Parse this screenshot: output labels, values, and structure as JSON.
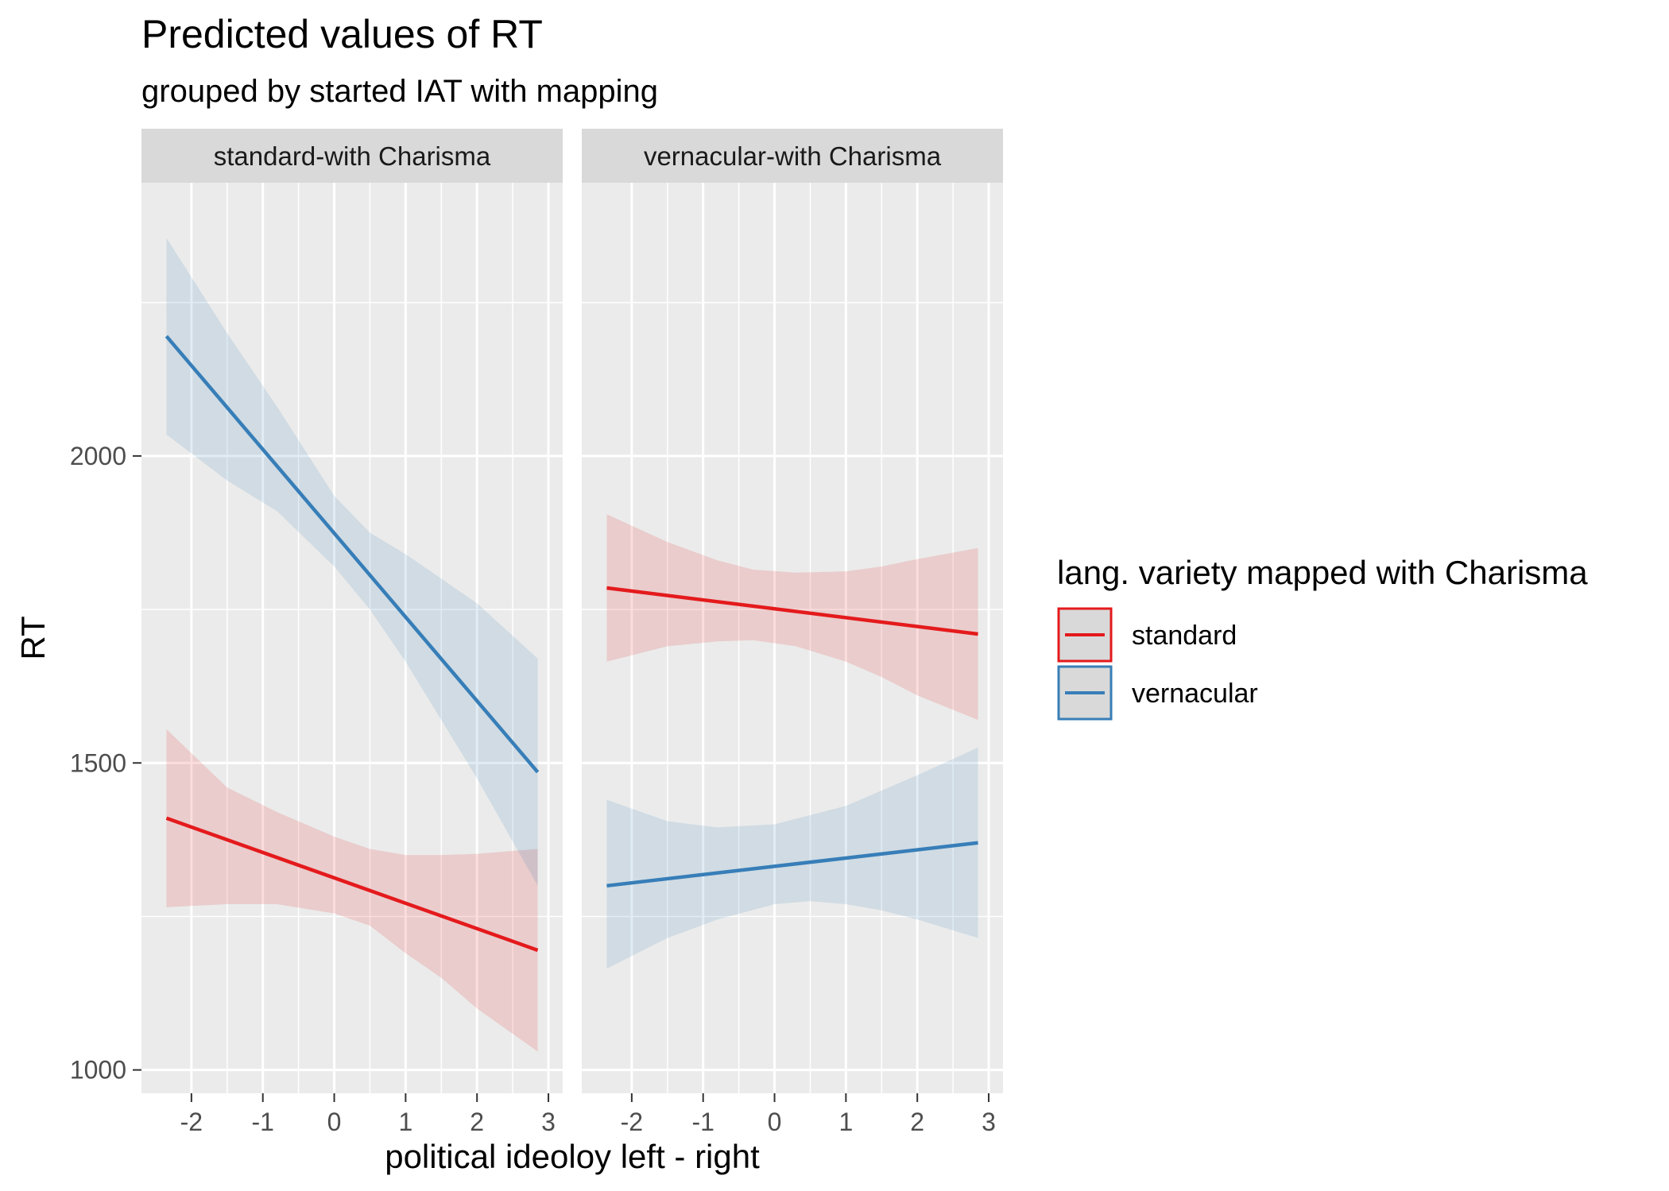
{
  "chart_data": {
    "type": "line",
    "title": "Predicted values of RT",
    "subtitle": "grouped by started IAT with mapping",
    "xlabel": "political ideoloy left - right",
    "ylabel": "RT",
    "xlim": [
      -2.7,
      3.2
    ],
    "ylim": [
      962,
      2445
    ],
    "x_ticks": [
      -2,
      -1,
      0,
      1,
      2,
      3
    ],
    "x_tick_labels": [
      "-2",
      "-1",
      "0",
      "1",
      "2",
      "3"
    ],
    "y_ticks": [
      1000,
      1500,
      2000
    ],
    "y_tick_labels": [
      "1000",
      "1500",
      "2000"
    ],
    "grid": true,
    "legend": {
      "title": "lang. variety mapped with Charisma",
      "position": "right",
      "entries": [
        "standard",
        "vernacular"
      ]
    },
    "colors": {
      "standard": "#e41a1c",
      "vernacular": "#377eb8"
    },
    "panels": [
      {
        "label": "standard-with Charisma",
        "series": [
          {
            "name": "standard",
            "x": [
              -2.35,
              2.85
            ],
            "y": [
              1410,
              1195
            ],
            "ci_x": [
              -2.35,
              -1.5,
              -0.8,
              0,
              0.5,
              1,
              1.5,
              2,
              2.85
            ],
            "ci_lower": [
              1265,
              1270,
              1270,
              1255,
              1235,
              1190,
              1150,
              1100,
              1030
            ],
            "ci_upper": [
              1555,
              1460,
              1420,
              1380,
              1360,
              1350,
              1350,
              1352,
              1360
            ]
          },
          {
            "name": "vernacular",
            "x": [
              -2.35,
              2.85
            ],
            "y": [
              2195,
              1485
            ],
            "ci_x": [
              -2.35,
              -1.5,
              -0.8,
              0,
              0.5,
              1,
              1.5,
              2,
              2.85
            ],
            "ci_lower": [
              2035,
              1960,
              1910,
              1820,
              1750,
              1665,
              1570,
              1475,
              1300
            ],
            "ci_upper": [
              2355,
              2200,
              2080,
              1935,
              1875,
              1840,
              1800,
              1760,
              1670
            ]
          }
        ]
      },
      {
        "label": "vernacular-with Charisma",
        "series": [
          {
            "name": "standard",
            "x": [
              -2.35,
              2.85
            ],
            "y": [
              1785,
              1710
            ],
            "ci_x": [
              -2.35,
              -1.5,
              -0.8,
              -0.3,
              0.3,
              1,
              1.5,
              2,
              2.85
            ],
            "ci_lower": [
              1665,
              1690,
              1698,
              1700,
              1690,
              1665,
              1640,
              1610,
              1570
            ],
            "ci_upper": [
              1905,
              1860,
              1830,
              1815,
              1810,
              1812,
              1820,
              1832,
              1850
            ]
          },
          {
            "name": "vernacular",
            "x": [
              -2.35,
              2.85
            ],
            "y": [
              1300,
              1370
            ],
            "ci_x": [
              -2.35,
              -1.5,
              -0.8,
              0,
              0.5,
              1,
              1.5,
              2,
              2.85
            ],
            "ci_lower": [
              1165,
              1215,
              1245,
              1270,
              1275,
              1270,
              1260,
              1245,
              1215
            ],
            "ci_upper": [
              1440,
              1405,
              1395,
              1400,
              1415,
              1430,
              1455,
              1480,
              1525
            ]
          }
        ]
      }
    ]
  }
}
